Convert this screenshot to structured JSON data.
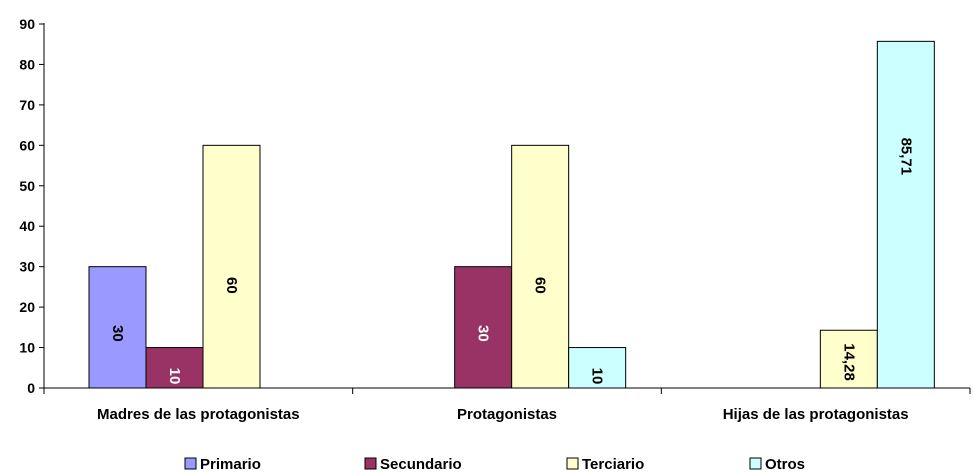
{
  "chart_data": {
    "type": "bar",
    "categories": [
      "Madres de las protagonistas",
      "Protagonistas",
      "Hijas de las protagonistas"
    ],
    "series": [
      {
        "name": "Primario",
        "color": "#9999ff",
        "values": [
          30,
          null,
          null
        ],
        "labels": [
          "30",
          null,
          null
        ]
      },
      {
        "name": "Secundario",
        "color": "#993366",
        "values": [
          10,
          30,
          null
        ],
        "labels": [
          "10",
          "30",
          null
        ]
      },
      {
        "name": "Terciario",
        "color": "#ffffcc",
        "values": [
          60,
          60,
          14.28
        ],
        "labels": [
          "60",
          "60",
          "14,28"
        ]
      },
      {
        "name": "Otros",
        "color": "#ccffff",
        "values": [
          null,
          10,
          85.71
        ],
        "labels": [
          null,
          "10",
          "85,71"
        ]
      }
    ],
    "ylim": [
      0,
      90
    ],
    "yticks": [
      "0",
      "10",
      "20",
      "30",
      "40",
      "50",
      "60",
      "70",
      "80",
      "90"
    ],
    "grid": false,
    "legend_position": "bottom",
    "title": "",
    "xlabel": "",
    "ylabel": ""
  }
}
